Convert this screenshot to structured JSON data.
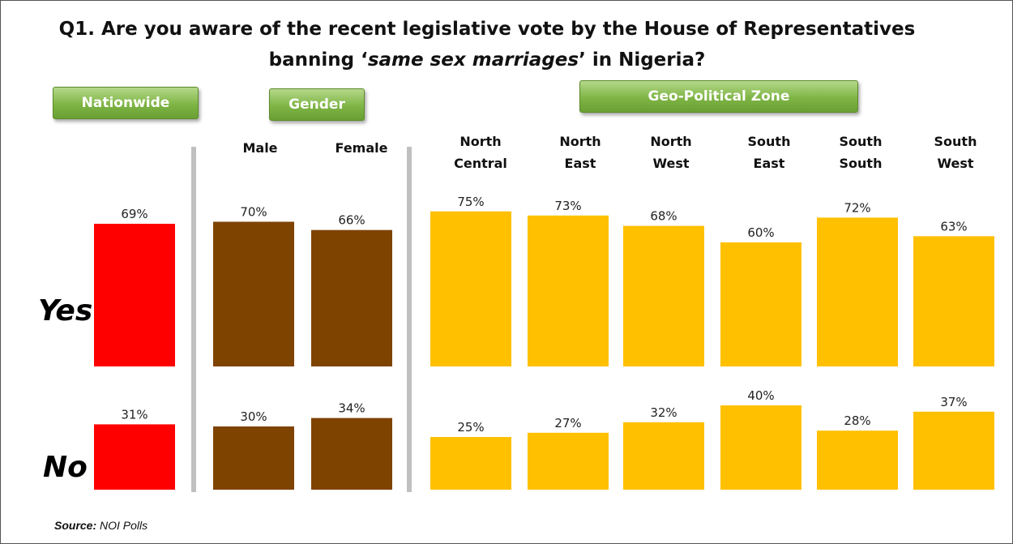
{
  "title_line1": "Q1. Are you aware of the recent legislative vote by the House of Representatives",
  "title_line2_pre": "banning ‘",
  "title_line2_em": "same sex marriages",
  "title_line2_post": "’ in Nigeria?",
  "groups": {
    "nationwide": "Nationwide",
    "gender": "Gender",
    "zone": "Geo-Political Zone"
  },
  "columns": [
    {
      "line1": "",
      "line2": ""
    },
    {
      "line1": "Male",
      "line2": ""
    },
    {
      "line1": "Female",
      "line2": ""
    },
    {
      "line1": "North",
      "line2": "Central"
    },
    {
      "line1": "North",
      "line2": "East"
    },
    {
      "line1": "North",
      "line2": "West"
    },
    {
      "line1": "South",
      "line2": "East"
    },
    {
      "line1": "South",
      "line2": "South"
    },
    {
      "line1": "South",
      "line2": "West"
    }
  ],
  "row_labels": {
    "yes": "Yes",
    "no": "No"
  },
  "source_label": "Source:",
  "source_value": "NOI Polls",
  "colors": {
    "nationwide": "#ff0000",
    "gender": "#7f4300",
    "zone": "#ffc000",
    "group_button": "#7fb545"
  },
  "chart_data": {
    "type": "bar",
    "title": "Q1. Are you aware of the recent legislative vote by the House of Representatives banning ‘same sex marriages’ in Nigeria?",
    "categories": [
      "Nationwide",
      "Male",
      "Female",
      "North Central",
      "North East",
      "North West",
      "South East",
      "South South",
      "South West"
    ],
    "series": [
      {
        "name": "Yes",
        "values": [
          69,
          70,
          66,
          75,
          73,
          68,
          60,
          72,
          63
        ],
        "labels": [
          "69%",
          "70%",
          "66%",
          "75%",
          "73%",
          "68%",
          "60%",
          "72%",
          "63%"
        ]
      },
      {
        "name": "No",
        "values": [
          31,
          30,
          34,
          25,
          27,
          32,
          40,
          28,
          37
        ],
        "labels": [
          "31%",
          "30%",
          "34%",
          "25%",
          "27%",
          "32%",
          "40%",
          "28%",
          "37%"
        ]
      }
    ],
    "group_colors": [
      "nationwide",
      "gender",
      "gender",
      "zone",
      "zone",
      "zone",
      "zone",
      "zone",
      "zone"
    ],
    "ylim": [
      0,
      100
    ],
    "grid": false
  }
}
